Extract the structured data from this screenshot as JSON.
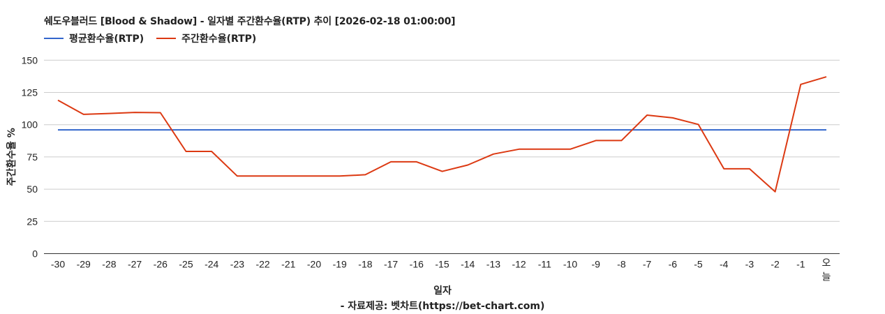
{
  "title": "쉐도우블러드 [Blood & Shadow] - 일자별 주간환수율(RTP) 추이 [2026-02-18 01:00:00]",
  "legend": [
    {
      "label": "평균환수율(RTP)",
      "color": "#3366cc"
    },
    {
      "label": "주간환수율(RTP)",
      "color": "#dc3912"
    }
  ],
  "credit": "- 자료제공: 벳차트(https://bet-chart.com)",
  "chart_data": {
    "type": "line",
    "title": "쉐도우블러드 [Blood & Shadow] - 일자별 주간환수율(RTP) 추이 [2026-02-18 01:00:00]",
    "xlabel": "일자",
    "ylabel": "주간환수율 %",
    "ylim": [
      0,
      150
    ],
    "yticks": [
      0,
      25,
      50,
      75,
      100,
      125,
      150
    ],
    "grid": true,
    "legend_position": "top",
    "categories": [
      "-30",
      "-29",
      "-28",
      "-27",
      "-26",
      "-25",
      "-24",
      "-23",
      "-22",
      "-21",
      "-20",
      "-19",
      "-18",
      "-17",
      "-16",
      "-15",
      "-14",
      "-13",
      "-12",
      "-11",
      "-10",
      "-9",
      "-8",
      "-7",
      "-6",
      "-5",
      "-4",
      "-3",
      "-2",
      "-1",
      "오늘"
    ],
    "series": [
      {
        "name": "평균환수율(RTP)",
        "color": "#3366cc",
        "values": [
          96,
          96,
          96,
          96,
          96,
          96,
          96,
          96,
          96,
          96,
          96,
          96,
          96,
          96,
          96,
          96,
          96,
          96,
          96,
          96,
          96,
          96,
          96,
          96,
          96,
          96,
          96,
          96,
          96,
          96,
          96
        ]
      },
      {
        "name": "주간환수율(RTP)",
        "color": "#dc3912",
        "values": [
          119,
          108,
          108.7,
          109.5,
          109.3,
          79.3,
          79.3,
          60.2,
          60.2,
          60.2,
          60.2,
          60.2,
          61.2,
          71.2,
          71.2,
          63.8,
          68.7,
          77.2,
          81,
          81,
          81,
          87.7,
          87.7,
          107.4,
          105.3,
          100.2,
          65.8,
          65.8,
          48,
          131.3,
          137.1
        ]
      }
    ]
  }
}
